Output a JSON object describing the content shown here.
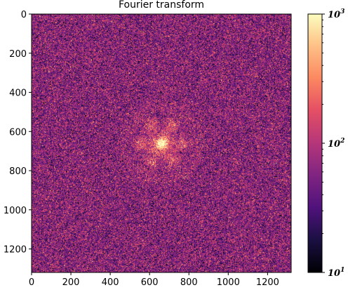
{
  "chart_data": {
    "type": "heatmap",
    "title": "Fourier transform",
    "xlabel": "",
    "ylabel": "",
    "xlim": [
      0,
      1320
    ],
    "ylim": [
      1320,
      0
    ],
    "x_ticks": [
      {
        "value": 0,
        "label": "0"
      },
      {
        "value": 200,
        "label": "200"
      },
      {
        "value": 400,
        "label": "400"
      },
      {
        "value": 600,
        "label": "600"
      },
      {
        "value": 800,
        "label": "800"
      },
      {
        "value": 1000,
        "label": "1000"
      },
      {
        "value": 1200,
        "label": "1200"
      }
    ],
    "y_ticks": [
      {
        "value": 0,
        "label": "0"
      },
      {
        "value": 200,
        "label": "200"
      },
      {
        "value": 400,
        "label": "400"
      },
      {
        "value": 600,
        "label": "600"
      },
      {
        "value": 800,
        "label": "800"
      },
      {
        "value": 1000,
        "label": "1000"
      },
      {
        "value": 1200,
        "label": "1200"
      }
    ],
    "colorbar": {
      "scale": "log",
      "colormap": "magma",
      "range": [
        10,
        1000
      ],
      "ticks": [
        {
          "value": 1000,
          "base": "10",
          "exponent": "3"
        },
        {
          "value": 100,
          "base": "10",
          "exponent": "2"
        },
        {
          "value": 10,
          "base": "10",
          "exponent": "1"
        }
      ]
    },
    "features": {
      "background_level": 60,
      "center_peak": {
        "x": 660,
        "y": 660,
        "value": 1000
      },
      "ring_radius": 110
    }
  }
}
